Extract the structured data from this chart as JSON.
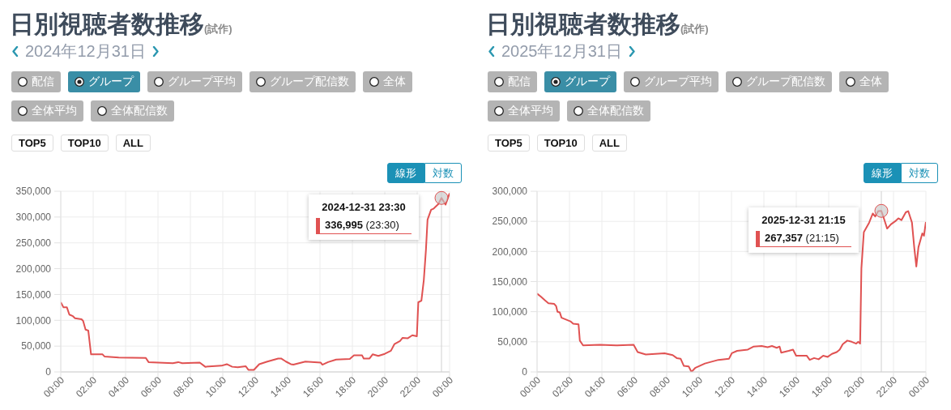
{
  "chart_data": [
    {
      "type": "line",
      "title": "日別視聴者数推移",
      "subtitle": "2024年12月31日",
      "x": [
        0,
        0.17,
        0.38,
        0.53,
        0.75,
        0.88,
        1.28,
        1.38,
        1.53,
        1.7,
        1.87,
        2.58,
        2.7,
        3.58,
        5.25,
        5.42,
        6.92,
        7.25,
        7.5,
        8.58,
        8.92,
        9.92,
        10.25,
        10.58,
        10.92,
        11.42,
        11.58,
        11.92,
        12.25,
        12.75,
        13.42,
        13.6,
        13.9,
        14.2,
        14.36,
        15.1,
        16.05,
        16.15,
        16.5,
        17.0,
        17.84,
        18.1,
        18.6,
        18.7,
        19.06,
        19.25,
        19.6,
        20.0,
        20.38,
        20.6,
        20.94,
        21.1,
        21.41,
        21.7,
        21.98,
        22.07,
        22.26,
        22.41,
        22.54,
        22.64,
        22.86,
        23.0,
        23.3,
        23.5,
        23.75,
        24
      ],
      "series": [
        {
          "color": "#e05252",
          "values": [
            135000,
            125000,
            125000,
            111000,
            108000,
            104000,
            102000,
            99000,
            82000,
            80000,
            34000,
            34000,
            30000,
            28000,
            27000,
            19000,
            17000,
            19000,
            17000,
            18000,
            10000,
            12000,
            15000,
            10000,
            9000,
            11000,
            4000,
            4000,
            15000,
            20000,
            26000,
            26000,
            20000,
            15000,
            14000,
            20000,
            18000,
            14000,
            19000,
            24000,
            25000,
            32000,
            32000,
            26000,
            26000,
            34000,
            31000,
            35000,
            41000,
            54000,
            60000,
            66000,
            65000,
            71000,
            69000,
            135000,
            138000,
            178000,
            236000,
            295000,
            314000,
            316000,
            325000,
            336995,
            324000,
            346000
          ]
        }
      ],
      "xlim": [
        0,
        24
      ],
      "xticks": [
        {
          "value": 0,
          "label": "00:00"
        },
        {
          "value": 2,
          "label": "02:00"
        },
        {
          "value": 4,
          "label": "04:00"
        },
        {
          "value": 6,
          "label": "06:00"
        },
        {
          "value": 8,
          "label": "08:00"
        },
        {
          "value": 10,
          "label": "10:00"
        },
        {
          "value": 12,
          "label": "12:00"
        },
        {
          "value": 14,
          "label": "14:00"
        },
        {
          "value": 16,
          "label": "16:00"
        },
        {
          "value": 18,
          "label": "18:00"
        },
        {
          "value": 20,
          "label": "20:00"
        },
        {
          "value": 22,
          "label": "22:00"
        },
        {
          "value": 24,
          "label": "00:00"
        }
      ],
      "ylim": [
        0,
        350000
      ],
      "yticks": [
        0,
        {
          "value": 50000,
          "label": "50,000"
        },
        {
          "value": 100000,
          "label": "100,000"
        },
        {
          "value": 150000,
          "label": "150,000"
        },
        {
          "value": 200000,
          "label": "200,000"
        },
        {
          "value": 250000,
          "label": "250,000"
        },
        {
          "value": 300000,
          "label": "300,000"
        },
        {
          "value": 350000,
          "label": "350,000"
        }
      ],
      "grid": true,
      "ref_lines": [
        {
          "axis": "x",
          "value": 23.5,
          "color": "#d0d0d0"
        }
      ],
      "annotations": [
        "(試作)",
        "配信",
        "グループ",
        "グループ平均",
        "グループ配信数",
        "全体",
        "全体平均",
        "全体配信数",
        "TOP5",
        "TOP10",
        "ALL",
        "線形",
        "対数",
        "2024-12-31 23:30",
        "336,995 (23:30)"
      ]
    },
    {
      "type": "line",
      "title": "日別視聴者数推移",
      "subtitle": "2025年12月31日",
      "x": [
        0,
        0.23,
        0.48,
        0.7,
        1.06,
        1.18,
        1.26,
        1.4,
        1.51,
        2.06,
        2.23,
        2.56,
        2.64,
        2.84,
        3.88,
        4.88,
        5.96,
        6.21,
        6.71,
        7.87,
        8.37,
        8.62,
        8.86,
        9.06,
        9.36,
        9.53,
        9.78,
        10.36,
        11.19,
        11.85,
        12.02,
        12.35,
        13.01,
        13.35,
        13.86,
        14.23,
        14.5,
        14.79,
        14.97,
        15.07,
        15.53,
        15.8,
        15.99,
        16.64,
        16.83,
        17.1,
        17.38,
        17.66,
        17.94,
        18.2,
        18.5,
        18.68,
        18.87,
        19.15,
        19.42,
        19.7,
        19.83,
        19.94,
        20.02,
        20.17,
        20.5,
        20.72,
        20.87,
        21.06,
        21.25,
        21.37,
        21.61,
        21.84,
        22.1,
        22.3,
        22.49,
        22.76,
        22.91,
        23.14,
        23.28,
        23.41,
        23.54,
        23.78,
        23.88,
        24
      ],
      "series": [
        {
          "color": "#e05252",
          "values": [
            130000,
            125000,
            119000,
            114000,
            113000,
            109000,
            100000,
            99000,
            90000,
            84000,
            80000,
            79000,
            52000,
            44000,
            45000,
            44000,
            45000,
            33000,
            29000,
            31000,
            28000,
            23000,
            22000,
            10000,
            9000,
            0,
            7000,
            14000,
            20000,
            22000,
            31000,
            35000,
            37000,
            42000,
            43000,
            41000,
            43000,
            40000,
            42000,
            32000,
            35000,
            37000,
            27000,
            27000,
            20000,
            23000,
            21000,
            27000,
            25000,
            30000,
            33000,
            37000,
            46000,
            52000,
            50000,
            47000,
            50000,
            47000,
            172000,
            232000,
            248000,
            263000,
            258000,
            267000,
            267357,
            258000,
            238000,
            245000,
            250000,
            255000,
            252000,
            265000,
            267000,
            248000,
            207000,
            175000,
            207000,
            230000,
            226000,
            249000
          ]
        }
      ],
      "xlim": [
        0,
        24
      ],
      "xticks": [
        {
          "value": 0,
          "label": "00:00"
        },
        {
          "value": 2,
          "label": "02:00"
        },
        {
          "value": 4,
          "label": "04:00"
        },
        {
          "value": 6,
          "label": "06:00"
        },
        {
          "value": 8,
          "label": "08:00"
        },
        {
          "value": 10,
          "label": "10:00"
        },
        {
          "value": 12,
          "label": "12:00"
        },
        {
          "value": 14,
          "label": "14:00"
        },
        {
          "value": 16,
          "label": "16:00"
        },
        {
          "value": 18,
          "label": "18:00"
        },
        {
          "value": 20,
          "label": "20:00"
        },
        {
          "value": 22,
          "label": "22:00"
        },
        {
          "value": 24,
          "label": "00:00"
        }
      ],
      "ylim": [
        0,
        300000
      ],
      "yticks": [
        0,
        {
          "value": 50000,
          "label": "50,000"
        },
        {
          "value": 100000,
          "label": "100,000"
        },
        {
          "value": 150000,
          "label": "150,000"
        },
        {
          "value": 200000,
          "label": "200,000"
        },
        {
          "value": 250000,
          "label": "250,000"
        },
        {
          "value": 300000,
          "label": "300,000"
        }
      ],
      "grid": true,
      "ref_lines": [
        {
          "axis": "x",
          "value": 21.25,
          "color": "#d0d0d0"
        }
      ],
      "annotations": [
        "(試作)",
        "配信",
        "グループ",
        "グループ平均",
        "グループ配信数",
        "全体",
        "全体平均",
        "全体配信数",
        "TOP5",
        "TOP10",
        "ALL",
        "線形",
        "対数",
        "2025-12-31 21:15",
        "267,357 (21:15)"
      ]
    }
  ]
}
